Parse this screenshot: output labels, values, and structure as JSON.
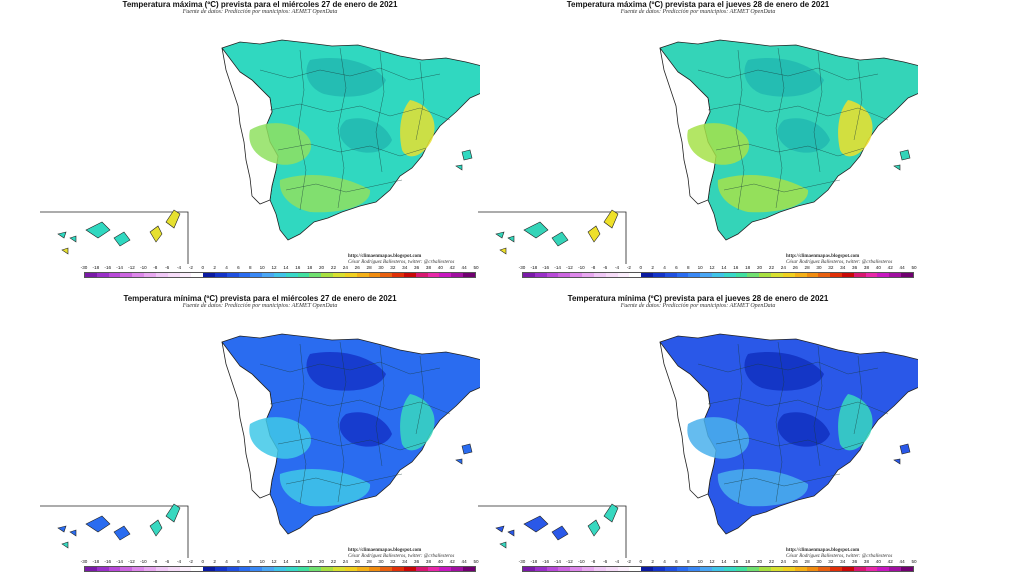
{
  "panels": [
    {
      "id": "tmax-27",
      "title": "Temperatura máxima (ºC) prevista para el miércoles 27 de enero de 2021",
      "subtitle": "Fuente de datos: Predicción por municipios: AEMET OpenData",
      "credit_blog": "http://climaenmapas.blogspot.com",
      "credit_author": "César Rodríguez Ballesteros, twitter: @crballesteros",
      "palette": {
        "land": "#30d8c0",
        "warm": "#8fe060",
        "hot": "#e6e030",
        "cool": "#22b8b0"
      }
    },
    {
      "id": "tmax-28",
      "title": "Temperatura máxima (ºC) prevista para el jueves 28 de enero de 2021",
      "subtitle": "Fuente de datos: Predicción por municipios: AEMET OpenData",
      "credit_blog": "http://climaenmapas.blogspot.com",
      "credit_author": "César Rodríguez Ballesteros, twitter: @crballesteros",
      "palette": {
        "land": "#34d4b8",
        "warm": "#a6e24a",
        "hot": "#eee02a",
        "cool": "#22b8b0"
      }
    },
    {
      "id": "tmin-27",
      "title": "Temperatura mínima (ºC) prevista para el miércoles 27 de enero de 2021",
      "subtitle": "Fuente de datos: Predicción por municipios: AEMET OpenData",
      "credit_blog": "http://climaenmapas.blogspot.com",
      "credit_author": "César Rodríguez Ballesteros, twitter: @crballesteros",
      "palette": {
        "land": "#2a6cf0",
        "warm": "#3fc8e8",
        "hot": "#38d8c0",
        "cool": "#1434c8"
      }
    },
    {
      "id": "tmin-28",
      "title": "Temperatura mínima (ºC) prevista para el jueves 28 de enero de 2021",
      "subtitle": "Fuente de datos: Predicción por municipios: AEMET OpenData",
      "credit_blog": "http://climaenmapas.blogspot.com",
      "credit_author": "César Rodríguez Ballesteros, twitter: @crballesteros",
      "palette": {
        "land": "#2a58e8",
        "warm": "#4ab0ec",
        "hot": "#38d8c0",
        "cool": "#1030c0"
      }
    }
  ],
  "scale": {
    "ticks": [
      "-30",
      "-18",
      "-16",
      "-14",
      "-12",
      "-10",
      "-8",
      "-6",
      "-4",
      "-2",
      "0",
      "2",
      "4",
      "6",
      "8",
      "10",
      "12",
      "14",
      "16",
      "18",
      "20",
      "22",
      "24",
      "26",
      "28",
      "30",
      "32",
      "34",
      "36",
      "38",
      "40",
      "42",
      "44",
      "50"
    ],
    "colors": [
      "#7a1aa8",
      "#9a30c8",
      "#b84ad8",
      "#cc66e0",
      "#dd88ea",
      "#e8a8f0",
      "#f0c8f6",
      "#f6dcf8",
      "#fbeefc",
      "#ffffff",
      "#0a1aa0",
      "#1434c8",
      "#2050e0",
      "#2a6cf0",
      "#3a88f4",
      "#4aa6f4",
      "#40c4e8",
      "#38d8c8",
      "#40e0a0",
      "#70e070",
      "#a8e040",
      "#d8e030",
      "#f0d020",
      "#f4b018",
      "#f08c10",
      "#e86010",
      "#e03008",
      "#c80808",
      "#d81870",
      "#e828a8",
      "#c818c0",
      "#a010a0",
      "#700070"
    ]
  }
}
